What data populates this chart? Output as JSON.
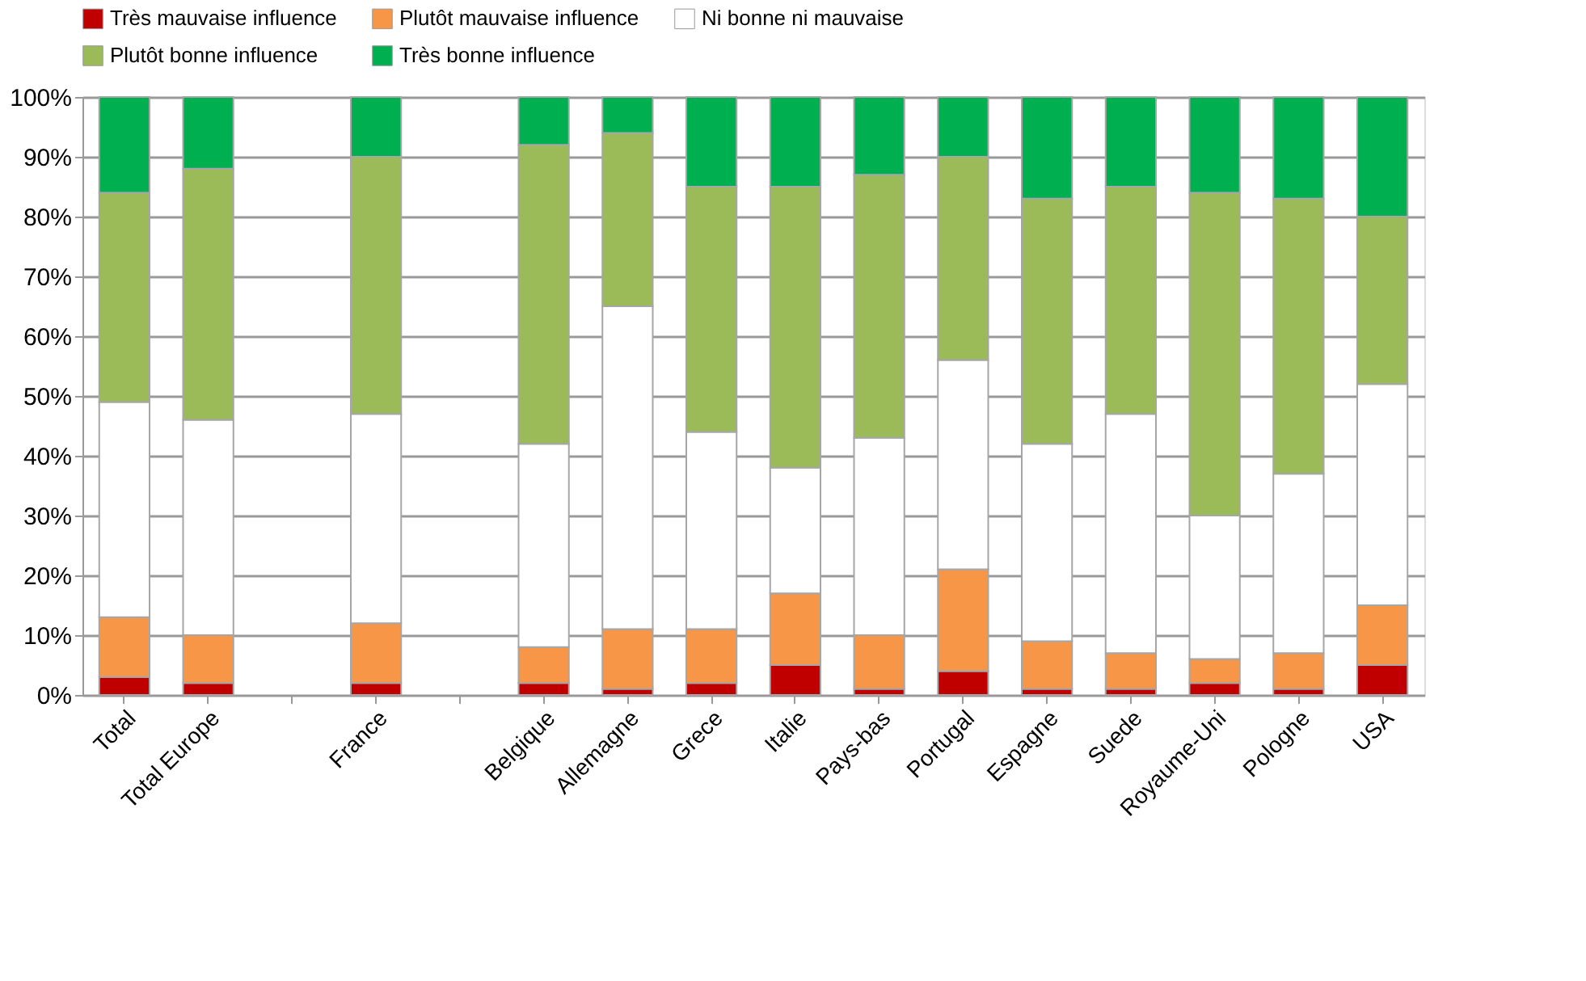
{
  "chart_data": {
    "type": "bar",
    "stacked": true,
    "legend": "top",
    "grid": "y",
    "categories": [
      "Total",
      "Total Europe",
      null,
      "France",
      null,
      "Belgique",
      "Allemagne",
      "Grece",
      "Italie",
      "Pays-bas",
      "Portugal",
      "Espagne",
      "Suede",
      "Royaume-Uni",
      "Pologne",
      "USA"
    ],
    "series": [
      {
        "name": "Très mauvaise influence",
        "color": "#c00000",
        "values": [
          3,
          2,
          null,
          2,
          null,
          2,
          1,
          2,
          5,
          1,
          4,
          1,
          1,
          2,
          1,
          5
        ]
      },
      {
        "name": "Plutôt mauvaise influence",
        "color": "#f79646",
        "values": [
          10,
          8,
          null,
          10,
          null,
          6,
          10,
          9,
          12,
          9,
          17,
          8,
          6,
          4,
          6,
          10
        ]
      },
      {
        "name": "Ni bonne ni mauvaise",
        "color": "#ffffff",
        "values": [
          36,
          36,
          null,
          35,
          null,
          34,
          54,
          33,
          21,
          33,
          35,
          33,
          40,
          24,
          30,
          37
        ]
      },
      {
        "name": "Plutôt bonne influence",
        "color": "#9bbb59",
        "values": [
          35,
          42,
          null,
          43,
          null,
          50,
          29,
          41,
          47,
          44,
          34,
          41,
          38,
          54,
          46,
          28
        ]
      },
      {
        "name": "Très bonne influence",
        "color": "#00b050",
        "values": [
          16,
          12,
          null,
          10,
          null,
          8,
          6,
          15,
          15,
          13,
          10,
          17,
          15,
          16,
          17,
          20
        ]
      }
    ],
    "ylim": [
      0,
      100
    ],
    "yticks": [
      {
        "value": 0,
        "label": "0%"
      },
      {
        "value": 10,
        "label": "10%"
      },
      {
        "value": 20,
        "label": "20%"
      },
      {
        "value": 30,
        "label": "30%"
      },
      {
        "value": 40,
        "label": "40%"
      },
      {
        "value": 50,
        "label": "50%"
      },
      {
        "value": 60,
        "label": "60%"
      },
      {
        "value": 70,
        "label": "70%"
      },
      {
        "value": 80,
        "label": "80%"
      },
      {
        "value": 90,
        "label": "90%"
      },
      {
        "value": 100,
        "label": "100%"
      }
    ]
  }
}
